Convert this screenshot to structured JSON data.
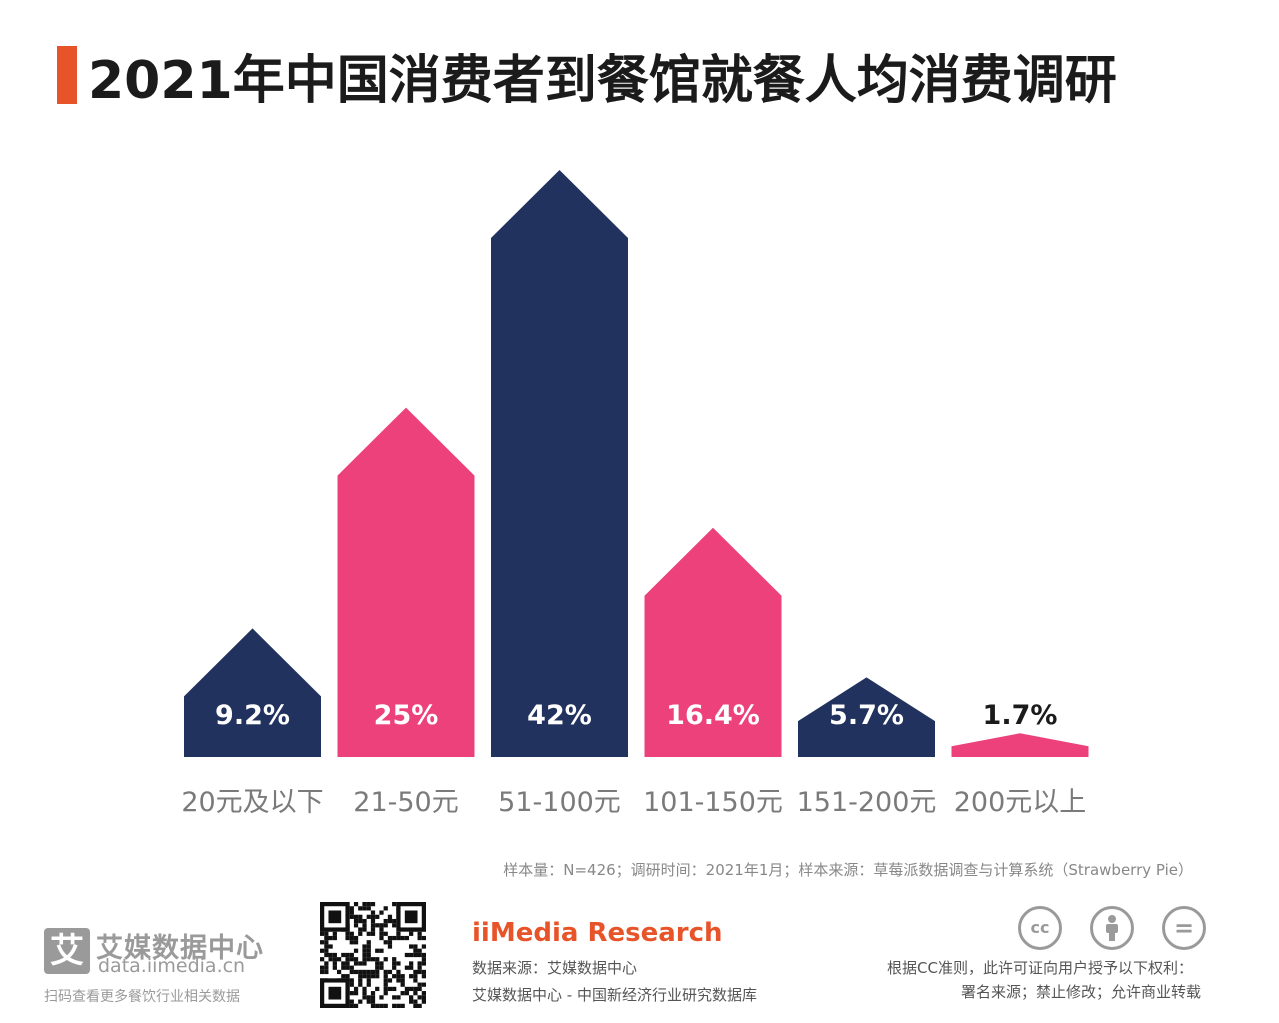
{
  "title": "2021年中国消费者到餐馆就餐人均消费调研",
  "colors": {
    "accent": "#e8542a",
    "navy": "#21325e",
    "pink": "#ec417a"
  },
  "chart_data": {
    "type": "bar",
    "title": "2021年中国消费者到餐馆就餐人均消费调研",
    "categories": [
      "20元及以下",
      "21-50元",
      "51-100元",
      "101-150元",
      "151-200元",
      "200元以上"
    ],
    "values": [
      9.2,
      25,
      42,
      16.4,
      5.7,
      1.7
    ],
    "labels": [
      "9.2%",
      "25%",
      "42%",
      "16.4%",
      "5.7%",
      "1.7%"
    ],
    "bar_colors": [
      "#21325e",
      "#ec417a",
      "#21325e",
      "#ec417a",
      "#21325e",
      "#ec417a"
    ],
    "label_colors": [
      "#ffffff",
      "#ffffff",
      "#ffffff",
      "#ffffff",
      "#ffffff",
      "#1b1b1b"
    ],
    "xlabel": "",
    "ylabel": "",
    "ylim": [
      0,
      42
    ],
    "grid": false
  },
  "note": "样本量：N=426；调研时间：2021年1月；样本来源：草莓派数据调查与计算系统（Strawberry Pie）",
  "footer": {
    "logo_mark": "艾",
    "logo_name": "艾媒数据中心",
    "logo_url": "data.iimedia.cn",
    "logo_tagline": "扫码查看更多餐饮行业相关数据",
    "qr_icon": "qr-code-icon",
    "brand": "iiMedia Research",
    "source_line1": "数据来源：艾媒数据中心",
    "source_line2": "艾媒数据中心 - 中国新经济行业研究数据库",
    "cc_icons": [
      {
        "name": "cc-icon",
        "glyph": "cc"
      },
      {
        "name": "attribution-icon",
        "glyph": ""
      },
      {
        "name": "no-derivatives-icon",
        "glyph": "="
      }
    ],
    "license_line1": "根据CC准则，此许可证向用户授予以下权利：",
    "license_line2": "署名来源；禁止修改；允许商业转载"
  }
}
